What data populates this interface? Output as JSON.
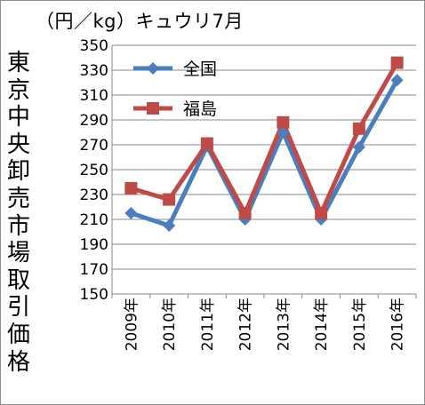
{
  "chart_data": {
    "type": "line",
    "title": "（円／kg）キュウリ7月",
    "ylabel": "東京中央卸売市場取引価格",
    "xlabel": "",
    "categories": [
      "2009年",
      "2010年",
      "2011年",
      "2012年",
      "2013年",
      "2014年",
      "2015年",
      "2016年"
    ],
    "ylim": [
      150,
      350
    ],
    "yticks": [
      150,
      170,
      190,
      210,
      230,
      250,
      270,
      290,
      310,
      330,
      350
    ],
    "grid": true,
    "legend_position": "top-left",
    "series": [
      {
        "name": "全国",
        "color": "#4a7ebf",
        "marker": "diamond",
        "values": [
          215,
          205,
          269,
          210,
          280,
          210,
          268,
          322
        ]
      },
      {
        "name": "福島",
        "color": "#be4b48",
        "marker": "square",
        "values": [
          235,
          226,
          271,
          215,
          288,
          215,
          283,
          336
        ]
      }
    ]
  }
}
